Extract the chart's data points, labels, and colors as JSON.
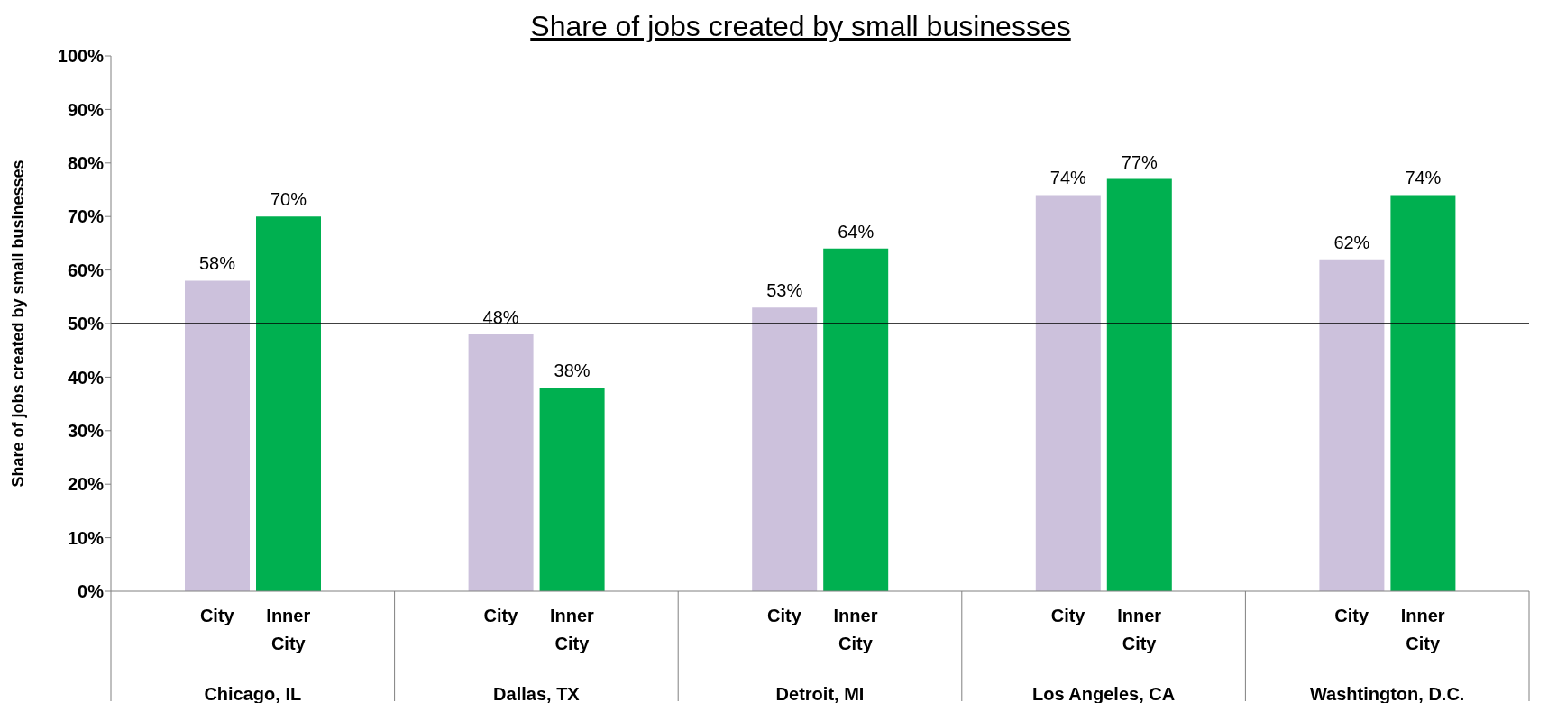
{
  "chart_data": {
    "type": "bar",
    "title": "Share of jobs created by small businesses",
    "ylabel": "Share of jobs created by small businesses",
    "categories": [
      "Chicago, IL",
      "Dallas, TX",
      "Detroit, MI",
      "Los Angeles, CA",
      "Washtington, D.C."
    ],
    "series": [
      {
        "name": "City",
        "color": "#ccc1dc",
        "values": [
          58,
          48,
          53,
          74,
          62
        ],
        "value_labels": [
          "58%",
          "48%",
          "53%",
          "74%",
          "62%"
        ]
      },
      {
        "name": "Inner City",
        "color": "#00b050",
        "values": [
          70,
          38,
          64,
          77,
          74
        ],
        "value_labels": [
          "70%",
          "38%",
          "64%",
          "77%",
          "74%"
        ]
      }
    ],
    "ylim": [
      0,
      100
    ],
    "yticks": [
      {
        "value": 0,
        "label": "0%"
      },
      {
        "value": 10,
        "label": "10%"
      },
      {
        "value": 20,
        "label": "20%"
      },
      {
        "value": 30,
        "label": "30%"
      },
      {
        "value": 40,
        "label": "40%"
      },
      {
        "value": 50,
        "label": "50%"
      },
      {
        "value": 60,
        "label": "60%"
      },
      {
        "value": 70,
        "label": "70%"
      },
      {
        "value": 80,
        "label": "80%"
      },
      {
        "value": 90,
        "label": "90%"
      },
      {
        "value": 100,
        "label": "100%"
      }
    ],
    "ref_lines": [
      {
        "axis": "y",
        "value": 50,
        "color": "#000000"
      }
    ]
  }
}
